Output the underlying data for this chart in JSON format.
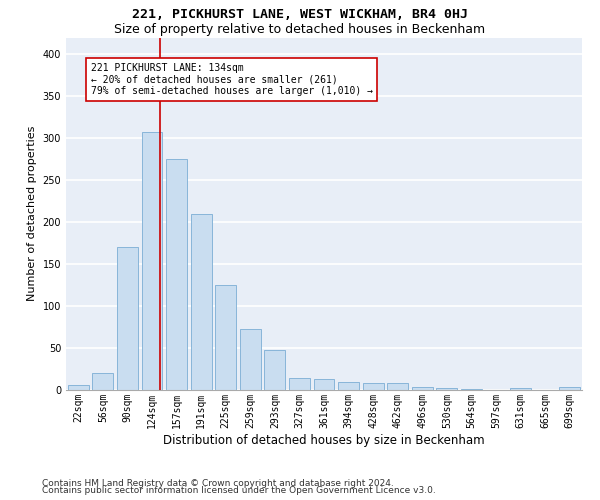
{
  "title1": "221, PICKHURST LANE, WEST WICKHAM, BR4 0HJ",
  "title2": "Size of property relative to detached houses in Beckenham",
  "xlabel": "Distribution of detached houses by size in Beckenham",
  "ylabel": "Number of detached properties",
  "categories": [
    "22sqm",
    "56sqm",
    "90sqm",
    "124sqm",
    "157sqm",
    "191sqm",
    "225sqm",
    "259sqm",
    "293sqm",
    "327sqm",
    "361sqm",
    "394sqm",
    "428sqm",
    "462sqm",
    "496sqm",
    "530sqm",
    "564sqm",
    "597sqm",
    "631sqm",
    "665sqm",
    "699sqm"
  ],
  "values": [
    6,
    20,
    170,
    307,
    275,
    210,
    125,
    73,
    48,
    14,
    13,
    10,
    8,
    8,
    4,
    2,
    1,
    0,
    2,
    0,
    3
  ],
  "bar_color": "#c9ddf0",
  "bar_edge_color": "#7badd4",
  "vline_x": 3.32,
  "vline_color": "#cc0000",
  "annotation_text": "221 PICKHURST LANE: 134sqm\n← 20% of detached houses are smaller (261)\n79% of semi-detached houses are larger (1,010) →",
  "annotation_box_color": "#ffffff",
  "annotation_box_edge": "#cc0000",
  "ylim": [
    0,
    420
  ],
  "yticks": [
    0,
    50,
    100,
    150,
    200,
    250,
    300,
    350,
    400
  ],
  "background_color": "#e8eef7",
  "grid_color": "#ffffff",
  "footer1": "Contains HM Land Registry data © Crown copyright and database right 2024.",
  "footer2": "Contains public sector information licensed under the Open Government Licence v3.0.",
  "title1_fontsize": 9.5,
  "title2_fontsize": 9,
  "xlabel_fontsize": 8.5,
  "ylabel_fontsize": 8,
  "tick_fontsize": 7,
  "footer_fontsize": 6.5
}
